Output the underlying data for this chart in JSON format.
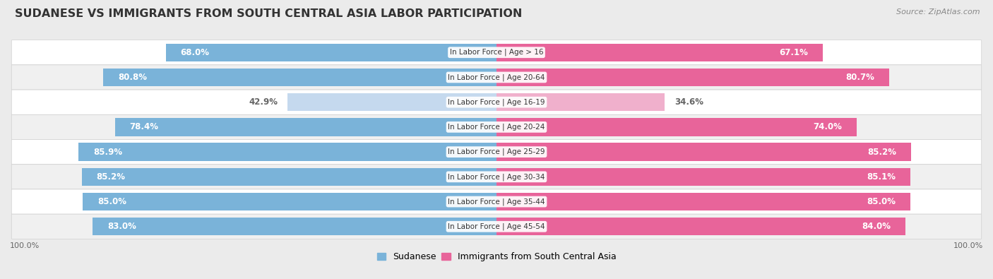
{
  "title": "SUDANESE VS IMMIGRANTS FROM SOUTH CENTRAL ASIA LABOR PARTICIPATION",
  "source": "Source: ZipAtlas.com",
  "categories": [
    "In Labor Force | Age > 16",
    "In Labor Force | Age 20-64",
    "In Labor Force | Age 16-19",
    "In Labor Force | Age 20-24",
    "In Labor Force | Age 25-29",
    "In Labor Force | Age 30-34",
    "In Labor Force | Age 35-44",
    "In Labor Force | Age 45-54"
  ],
  "sudanese": [
    68.0,
    80.8,
    42.9,
    78.4,
    85.9,
    85.2,
    85.0,
    83.0
  ],
  "immigrants": [
    67.1,
    80.7,
    34.6,
    74.0,
    85.2,
    85.1,
    85.0,
    84.0
  ],
  "sudanese_color_full": "#7ab3d9",
  "sudanese_color_light": "#c5d9ee",
  "immigrants_color_full": "#e8649a",
  "immigrants_color_light": "#f0b0cc",
  "label_color_white": "#ffffff",
  "label_color_dark": "#666666",
  "full_threshold": 60.0,
  "background_color": "#ebebeb",
  "row_bg_even": "#ffffff",
  "row_bg_odd": "#f0f0f0",
  "legend_sudanese": "Sudanese",
  "legend_immigrants": "Immigrants from South Central Asia",
  "title_fontsize": 11.5,
  "label_fontsize": 8.5,
  "category_fontsize": 7.5,
  "source_fontsize": 8
}
